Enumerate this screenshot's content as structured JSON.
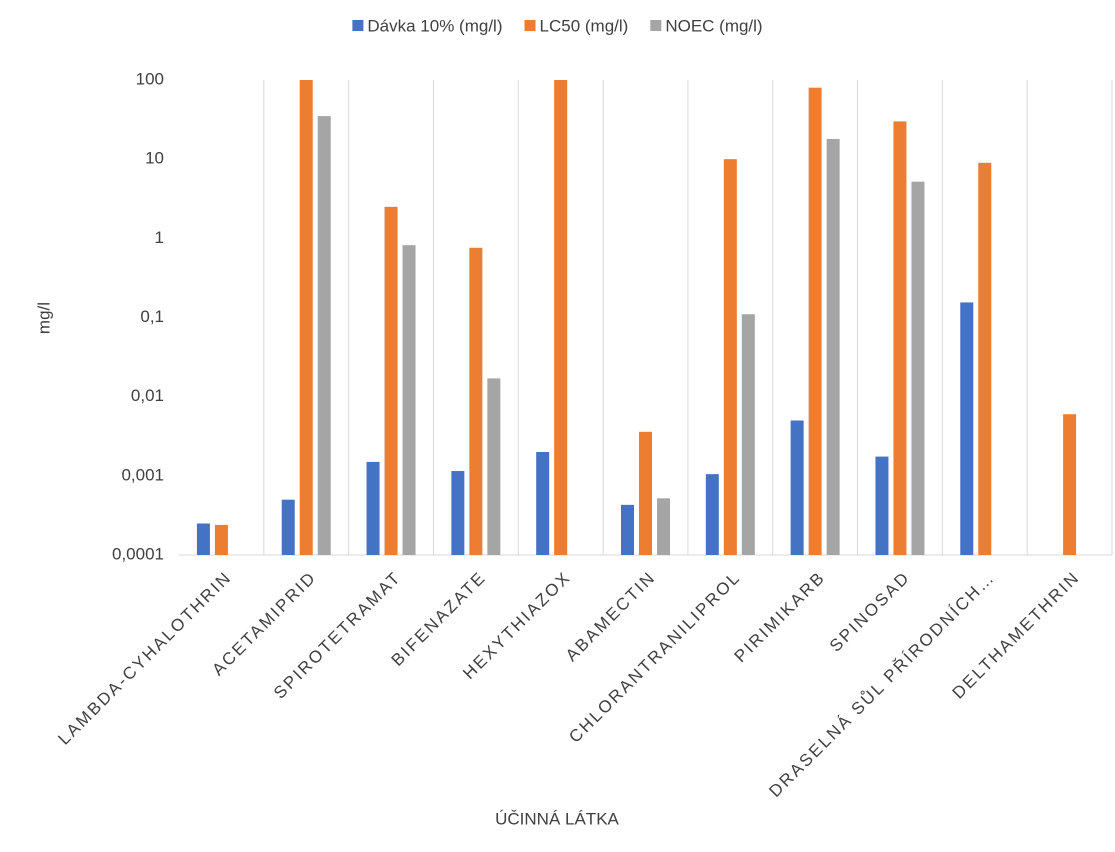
{
  "chart_data": {
    "type": "bar",
    "x_label": "ÚČINNÁ LÁTKA",
    "y_label": "mg/l",
    "yscale": "log",
    "grid": false,
    "categories": [
      "LAMBDA-CYHALOTHRIN",
      "ACETAMIPRID",
      "SPIROTETRAMAT",
      "BIFENAZATE",
      "HEXYTHIAZOX",
      "ABAMECTIN",
      "CHLORANTRANILIPROL",
      "PIRIMIKARB",
      "SPINOSAD",
      "DRASELNÁ SŮL PŘÍRODNÍCH…",
      "DELTHAMETHRIN"
    ],
    "series": [
      {
        "name": "Dávka 10% (mg/l)",
        "color": "#4472c4",
        "values": [
          0.00025,
          0.0005,
          0.0015,
          0.00115,
          0.002,
          0.00043,
          0.00105,
          0.005,
          0.00175,
          0.155,
          null
        ]
      },
      {
        "name": "LC50 (mg/l)",
        "color": "#ed7d31",
        "values": [
          0.00024,
          100,
          2.5,
          0.76,
          100,
          0.0036,
          10,
          80,
          30,
          9,
          0.006
        ]
      },
      {
        "name": "NOEC (mg/l)",
        "color": "#a5a5a5",
        "values": [
          null,
          35,
          0.82,
          0.017,
          null,
          0.00052,
          0.11,
          18,
          5.2,
          null,
          null
        ]
      }
    ],
    "ylim": [
      0.0001,
      100
    ],
    "yticks": [
      {
        "value": 0.0001,
        "label": "0,0001"
      },
      {
        "value": 0.001,
        "label": "0,001"
      },
      {
        "value": 0.01,
        "label": "0,01"
      },
      {
        "value": 0.1,
        "label": "0,1"
      },
      1,
      10,
      100
    ]
  }
}
